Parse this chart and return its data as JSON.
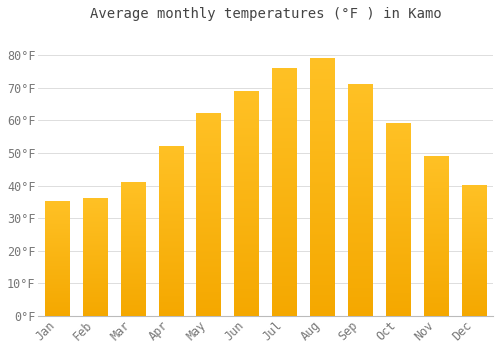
{
  "title": "Average monthly temperatures (°F ) in Kamo",
  "months": [
    "Jan",
    "Feb",
    "Mar",
    "Apr",
    "May",
    "Jun",
    "Jul",
    "Aug",
    "Sep",
    "Oct",
    "Nov",
    "Dec"
  ],
  "values": [
    35,
    36,
    41,
    52,
    62,
    69,
    76,
    79,
    71,
    59,
    49,
    40
  ],
  "bar_color": "#FFC125",
  "bar_color_bottom": "#F5A800",
  "background_color": "#FFFFFF",
  "grid_color": "#DDDDDD",
  "ylim": [
    0,
    88
  ],
  "yticks": [
    0,
    10,
    20,
    30,
    40,
    50,
    60,
    70,
    80
  ],
  "ytick_labels": [
    "0°F",
    "10°F",
    "20°F",
    "30°F",
    "40°F",
    "50°F",
    "60°F",
    "70°F",
    "80°F"
  ],
  "title_fontsize": 10,
  "tick_fontsize": 8.5,
  "font_color": "#777777",
  "title_color": "#444444"
}
